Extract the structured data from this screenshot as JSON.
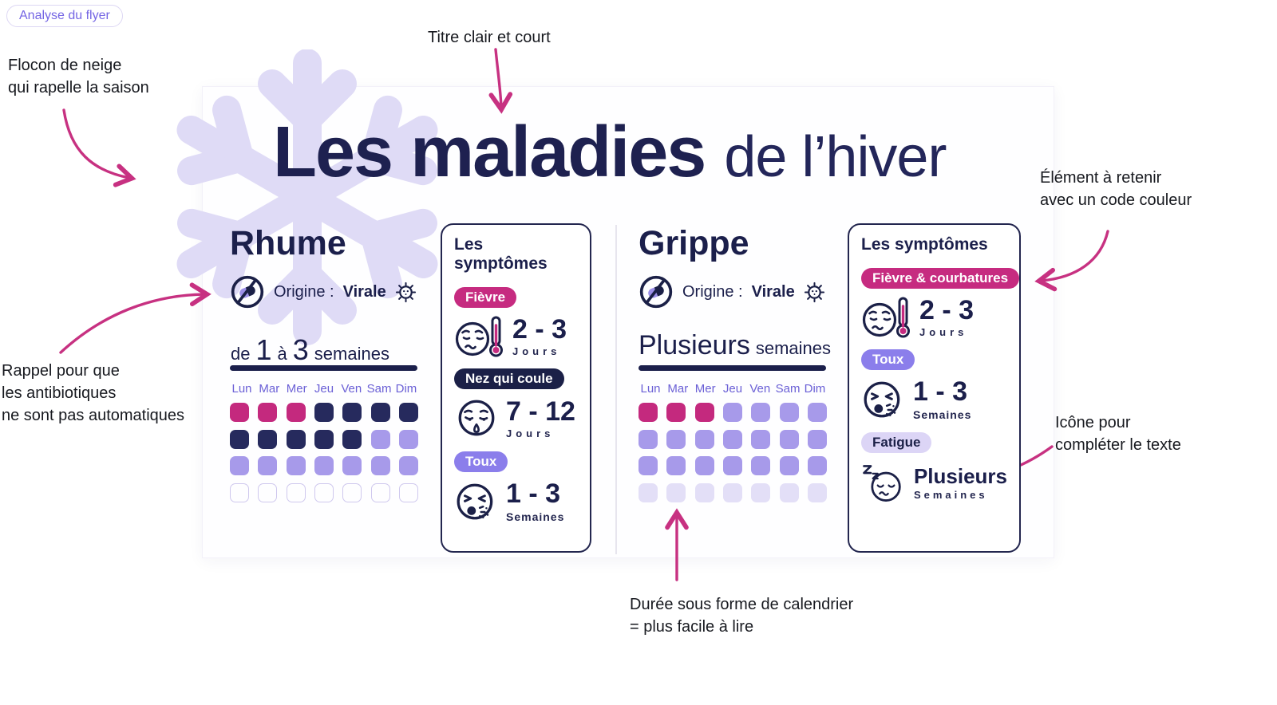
{
  "badge": {
    "label": "Analyse du flyer"
  },
  "annotations": {
    "title": "Titre clair et court",
    "snowflake": "Flocon de neige\nqui rapelle la saison",
    "antibiotics": "Rappel pour que\nles antibiotiques\nne sont pas automatiques",
    "color_code": "Élément à retenir\navec un code couleur",
    "icon": "Icône pour\ncompléter le texte",
    "calendar": "Durée sous forme de calendrier\n= plus facile à lire"
  },
  "flyer": {
    "title": {
      "main": "Les maladies",
      "suffix": "de l’hiver"
    },
    "diseases": [
      {
        "name": "Rhume",
        "origin": {
          "label": "Origine :",
          "value": "Virale"
        },
        "duration": {
          "p1": "de",
          "n1": "1",
          "p2": "à",
          "n2": "3",
          "p3": "semaines"
        },
        "calendar": {
          "days": [
            "Lun",
            "Mar",
            "Mer",
            "Jeu",
            "Ven",
            "Sam",
            "Dim"
          ],
          "rows": [
            [
              "pink",
              "pink",
              "pink",
              "navy",
              "navy",
              "navy",
              "navy"
            ],
            [
              "navy",
              "navy",
              "navy",
              "navy",
              "navy",
              "lav",
              "lav"
            ],
            [
              "lav",
              "lav",
              "lav",
              "lav",
              "lav",
              "lav",
              "lav"
            ],
            [
              "empty",
              "empty",
              "empty",
              "empty",
              "empty",
              "empty",
              "empty"
            ]
          ]
        },
        "card": {
          "title": "Les symptômes",
          "symptoms": [
            {
              "tag": "Fièvre",
              "value": "2 - 3",
              "unit": "Jours"
            },
            {
              "tag": "Nez qui coule",
              "value": "7 - 12",
              "unit": "Jours"
            },
            {
              "tag": "Toux",
              "value": "1 - 3",
              "unit": "Semaines"
            }
          ]
        }
      },
      {
        "name": "Grippe",
        "origin": {
          "label": "Origine :",
          "value": "Virale"
        },
        "duration": {
          "big": "Plusieurs",
          "small": "semaines"
        },
        "calendar": {
          "days": [
            "Lun",
            "Mar",
            "Mer",
            "Jeu",
            "Ven",
            "Sam",
            "Dim"
          ],
          "rows": [
            [
              "pink",
              "pink",
              "pink",
              "lav",
              "lav",
              "lav",
              "lav"
            ],
            [
              "lav",
              "lav",
              "lav",
              "lav",
              "lav",
              "lav",
              "lav"
            ],
            [
              "lav",
              "lav",
              "lav",
              "lav",
              "lav",
              "lav",
              "lav"
            ],
            [
              "pale",
              "pale",
              "pale",
              "pale",
              "pale",
              "pale",
              "pale"
            ]
          ]
        },
        "card": {
          "title": "Les symptômes",
          "symptoms": [
            {
              "tag": "Fièvre & courbatures",
              "value": "2 - 3",
              "unit": "Jours"
            },
            {
              "tag": "Toux",
              "value": "1 - 3",
              "unit": "Semaines"
            },
            {
              "tag": "Fatigue",
              "value": "Plusieurs",
              "unit": "Semaines"
            }
          ]
        }
      }
    ]
  },
  "colors": {
    "navy": "#1B1F4B",
    "pink": "#C62B80",
    "lavender": "#A79AEA",
    "pale_lavender": "#E3DFF7",
    "purple_pill": "#8B7EEB",
    "snowflake": "#DFDBF6",
    "arrow_pink": "#C73181",
    "day_label_purple": "#6B60D6",
    "badge_purple": "#7465E4"
  }
}
